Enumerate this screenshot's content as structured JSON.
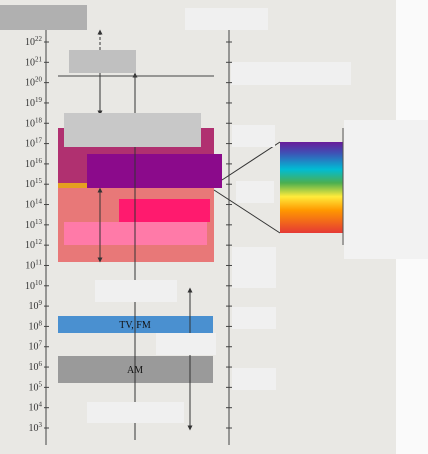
{
  "axis": {
    "base": "10",
    "exponents": [
      "22",
      "21",
      "20",
      "19",
      "18",
      "17",
      "16",
      "15",
      "14",
      "13",
      "12",
      "11",
      "10",
      "9",
      "8",
      "7",
      "6",
      "5",
      "4",
      "3"
    ]
  },
  "bands": [
    {
      "label": "TV, FM"
    },
    {
      "label": "AM"
    }
  ]
}
